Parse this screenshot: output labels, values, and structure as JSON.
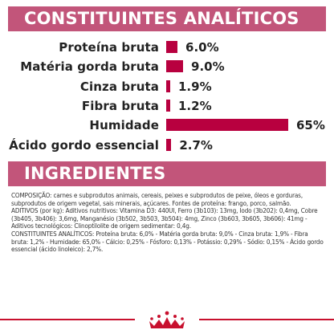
{
  "section_constituents": {
    "title": "CONSTITUINTES ANALÍTICOS"
  },
  "analytics": [
    {
      "label": "Proteína bruta",
      "value_text": "6.0%",
      "value": 6.0
    },
    {
      "label": "Matéria gorda bruta",
      "value_text": "9.0%",
      "value": 9.0
    },
    {
      "label": "Cinza bruta",
      "value_text": "1.9%",
      "value": 1.9
    },
    {
      "label": "Fibra bruta",
      "value_text": "1.2%",
      "value": 1.2
    },
    {
      "label": "Humidade",
      "value_text": "65%",
      "value": 65
    },
    {
      "label": "Ácido gordo essencial",
      "value_text": "2.7%",
      "value": 2.7
    }
  ],
  "section_ingredients": {
    "title": "INGREDIENTES"
  },
  "ingredients_text": {
    "composition": "COMPOSIÇÃO: carnes e subprodutos animais, cereais, peixes e subprodutos de peixe, óleos e gorduras, subprodutos de origem vegetal, sais minerais, açúcares. Fontes de proteína: frango, porco, salmão.",
    "additives": "ADITIVOS (por kg): Aditivos nutritivos: Vitamina D3: 440UI, Ferro (3b103): 13mg, Iodo (3b202): 0,4mg, Cobre (3b405, 3b406): 3,6mg, Manganésio (3b502, 3b503, 3b504): 4mg, Zinco (3b603, 3b605, 3b606): 41mg - Aditivos tecnológicos: Clinoptilolite de origem sedimentar: 0,4g.",
    "constituents": "CONSTITUINTES ANALÍTICOS: Proteína bruta: 6,0% - Matéria gorda bruta: 9,0% - Cinza bruta: 1,9% - Fibra bruta: 1,2% - Humidade: 65,0% - Cálcio: 0,25% - Fósforo: 0,13% - Potássio: 0,29% - Sódio: 0,15% - Ácido gordo essencial (ácido linoleico): 2,7%."
  },
  "colors": {
    "banner": "#c2557a",
    "bar": "#b8003f",
    "footer_line": "#c8102e"
  },
  "logo": {
    "name": "royal-canin-crown-logo"
  }
}
